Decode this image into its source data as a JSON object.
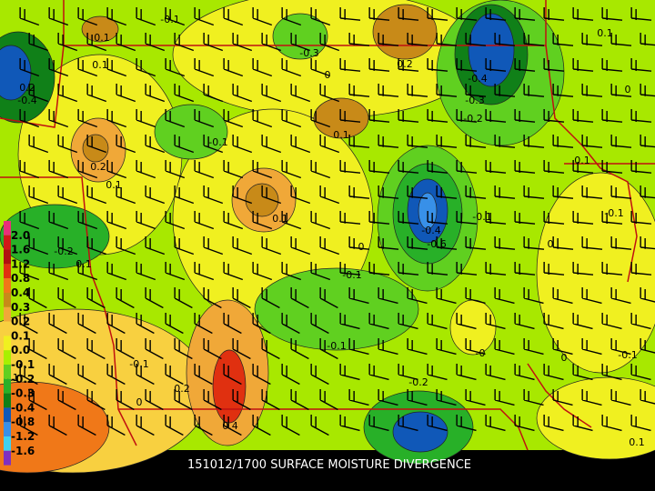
{
  "footer": {
    "title": "151012/1700 SURFACE MOISTURE DIVERGENCE"
  },
  "legend": {
    "labels": [
      "2.0",
      "1.6",
      "1.2",
      "0.8",
      "0.4",
      "0.3",
      "0.2",
      "0.1",
      "0.0",
      "-0.1",
      "-0.2",
      "-0.3",
      "-0.4",
      "-0.8",
      "-1.2",
      "-1.6"
    ],
    "colors": [
      "#e8307a",
      "#d01818",
      "#b01010",
      "#e03010",
      "#f07818",
      "#c88a18",
      "#f0a838",
      "#f8d040",
      "#f0f020",
      "#a8f000",
      "#60d020",
      "#28b028",
      "#108018",
      "#1058b8",
      "#3890e8",
      "#40d0f0",
      "#8030c0"
    ]
  },
  "contour_labels": [
    "-0.1",
    "0.1",
    "0.1",
    "-0.3",
    "0",
    "0.2",
    "-0.4",
    "-0.3",
    "-0.2",
    "0.1",
    "0",
    "0.1",
    "0.1",
    "-0.1",
    "0.2",
    "0.1",
    "0.1",
    "-0.1",
    "-0.4",
    "-0.6",
    "0",
    "-0.1",
    "-0.2",
    "0.1",
    "0",
    "-0.1",
    "0.1",
    "-0.1",
    "0",
    "0.2",
    "0.4",
    "-0.1",
    "-0",
    "0",
    "-0.1",
    "-0.2",
    "0.1",
    "0.2",
    "-0.4"
  ]
}
